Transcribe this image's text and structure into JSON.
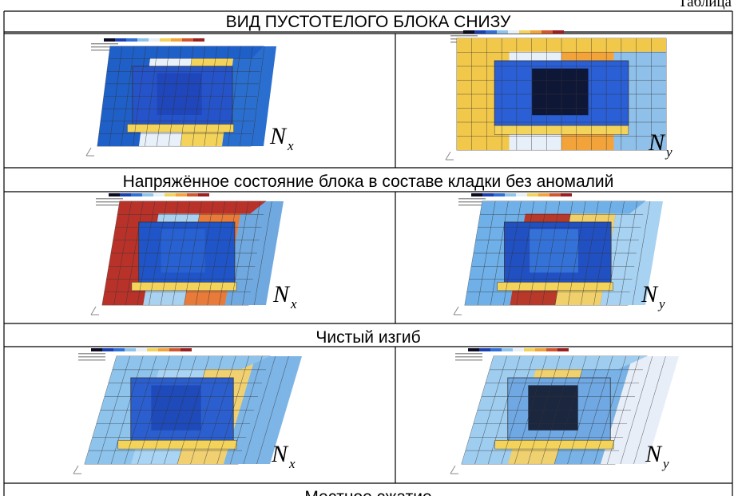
{
  "header": {
    "caption": "Таблица"
  },
  "table": {
    "title": "ВИД ПУСТОТЕЛОГО БЛОКА СНИЗУ",
    "sections": [
      {
        "cells": [
          {
            "symbol": "N",
            "subscript": "x"
          },
          {
            "symbol": "N",
            "subscript": "y"
          }
        ],
        "caption": "Напряжённое состояние блока в составе кладки без аномалий"
      },
      {
        "cells": [
          {
            "symbol": "N",
            "subscript": "x"
          },
          {
            "symbol": "N",
            "subscript": "y"
          }
        ],
        "caption": "Чистый изгиб"
      },
      {
        "cells": [
          {
            "symbol": "N",
            "subscript": "x"
          },
          {
            "symbol": "N",
            "subscript": "y"
          }
        ],
        "caption": "Местное сжатие"
      }
    ]
  }
}
